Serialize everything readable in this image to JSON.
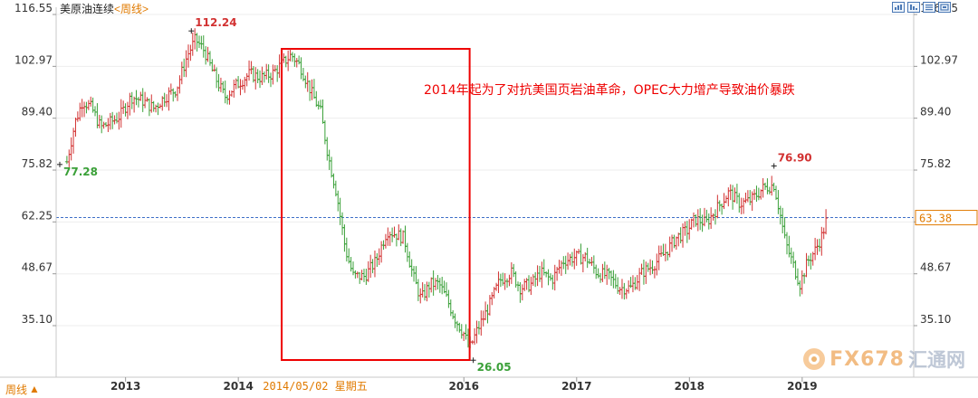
{
  "header": {
    "title": "美原油连续",
    "period": "<周线>"
  },
  "footer": {
    "period_label": "周线",
    "period_arrow": "▲"
  },
  "watermark": {
    "text": "FX678",
    "cn": "汇通网"
  },
  "colors": {
    "up": "#d23232",
    "down": "#3aa038",
    "box": "#ee0000",
    "current_line": "#3f6fc8",
    "label_up": "#d23232",
    "label_down": "#3aa038",
    "highlight": "#e07a00"
  },
  "chart_data": {
    "type": "ohlc",
    "title": "美原油连续<周线>",
    "ylim": [
      26.0,
      118.0
    ],
    "yticks": [
      "116.55",
      "102.97",
      "89.40",
      "75.82",
      "62.25",
      "48.67",
      "35.10"
    ],
    "xticks": [
      "2013",
      "2014",
      "2016",
      "2017",
      "2018",
      "2019"
    ],
    "x_range": [
      "2012-06",
      "2019-12"
    ],
    "cursor_date": "2014/05/02",
    "cursor_weekday": "星期五",
    "current_price": "63.38",
    "current_value": 63.38,
    "annotation": "2014年起为了对抗美国页岩油革命，OPEC大力增产导致油价暴跌",
    "price_labels": [
      {
        "text": "112.24",
        "value": 112.24,
        "date": "2013-08",
        "kind": "high"
      },
      {
        "text": "77.28",
        "value": 77.28,
        "date": "2012-06",
        "kind": "low"
      },
      {
        "text": "76.90",
        "value": 76.9,
        "date": "2018-10",
        "kind": "high"
      },
      {
        "text": "26.05",
        "value": 26.05,
        "date": "2016-02",
        "kind": "low"
      }
    ],
    "highlight_period": [
      "2014-06",
      "2016-02"
    ],
    "series": [
      {
        "values": [
          [
            2012.48,
            78
          ],
          [
            2012.55,
            88
          ],
          [
            2012.62,
            94
          ],
          [
            2012.7,
            92
          ],
          [
            2012.78,
            87
          ],
          [
            2012.85,
            88
          ],
          [
            2012.95,
            90
          ],
          [
            2013.05,
            95
          ],
          [
            2013.15,
            94
          ],
          [
            2013.25,
            92
          ],
          [
            2013.35,
            95
          ],
          [
            2013.45,
            97
          ],
          [
            2013.55,
            106
          ],
          [
            2013.62,
            110
          ],
          [
            2013.7,
            107
          ],
          [
            2013.78,
            101
          ],
          [
            2013.88,
            95
          ],
          [
            2013.98,
            98
          ],
          [
            2014.1,
            101
          ],
          [
            2014.2,
            100
          ],
          [
            2014.3,
            101
          ],
          [
            2014.4,
            104
          ],
          [
            2014.47,
            106
          ],
          [
            2014.55,
            103
          ],
          [
            2014.65,
            96
          ],
          [
            2014.73,
            91
          ],
          [
            2014.8,
            79
          ],
          [
            2014.87,
            70
          ],
          [
            2014.95,
            55
          ],
          [
            2015.02,
            48
          ],
          [
            2015.12,
            48
          ],
          [
            2015.22,
            52
          ],
          [
            2015.32,
            60
          ],
          [
            2015.4,
            59
          ],
          [
            2015.47,
            58
          ],
          [
            2015.55,
            48
          ],
          [
            2015.62,
            42
          ],
          [
            2015.7,
            46
          ],
          [
            2015.78,
            46
          ],
          [
            2015.85,
            42
          ],
          [
            2015.92,
            37
          ],
          [
            2016.0,
            33
          ],
          [
            2016.05,
            29
          ],
          [
            2016.12,
            34
          ],
          [
            2016.22,
            40
          ],
          [
            2016.32,
            47
          ],
          [
            2016.42,
            49
          ],
          [
            2016.5,
            45
          ],
          [
            2016.6,
            46
          ],
          [
            2016.68,
            49
          ],
          [
            2016.78,
            47
          ],
          [
            2016.88,
            52
          ],
          [
            2016.98,
            53
          ],
          [
            2017.08,
            53
          ],
          [
            2017.18,
            49
          ],
          [
            2017.28,
            48
          ],
          [
            2017.38,
            45
          ],
          [
            2017.48,
            45
          ],
          [
            2017.58,
            49
          ],
          [
            2017.68,
            51
          ],
          [
            2017.78,
            54
          ],
          [
            2017.88,
            58
          ],
          [
            2017.98,
            60
          ],
          [
            2018.05,
            63
          ],
          [
            2018.15,
            62
          ],
          [
            2018.25,
            66
          ],
          [
            2018.35,
            70
          ],
          [
            2018.45,
            67
          ],
          [
            2018.55,
            68
          ],
          [
            2018.65,
            71
          ],
          [
            2018.75,
            72
          ],
          [
            2018.8,
            65
          ],
          [
            2018.85,
            57
          ],
          [
            2018.92,
            51
          ],
          [
            2018.98,
            46
          ],
          [
            2019.05,
            52
          ],
          [
            2019.12,
            55
          ],
          [
            2019.18,
            59
          ],
          [
            2019.22,
            63.4
          ]
        ]
      }
    ]
  }
}
